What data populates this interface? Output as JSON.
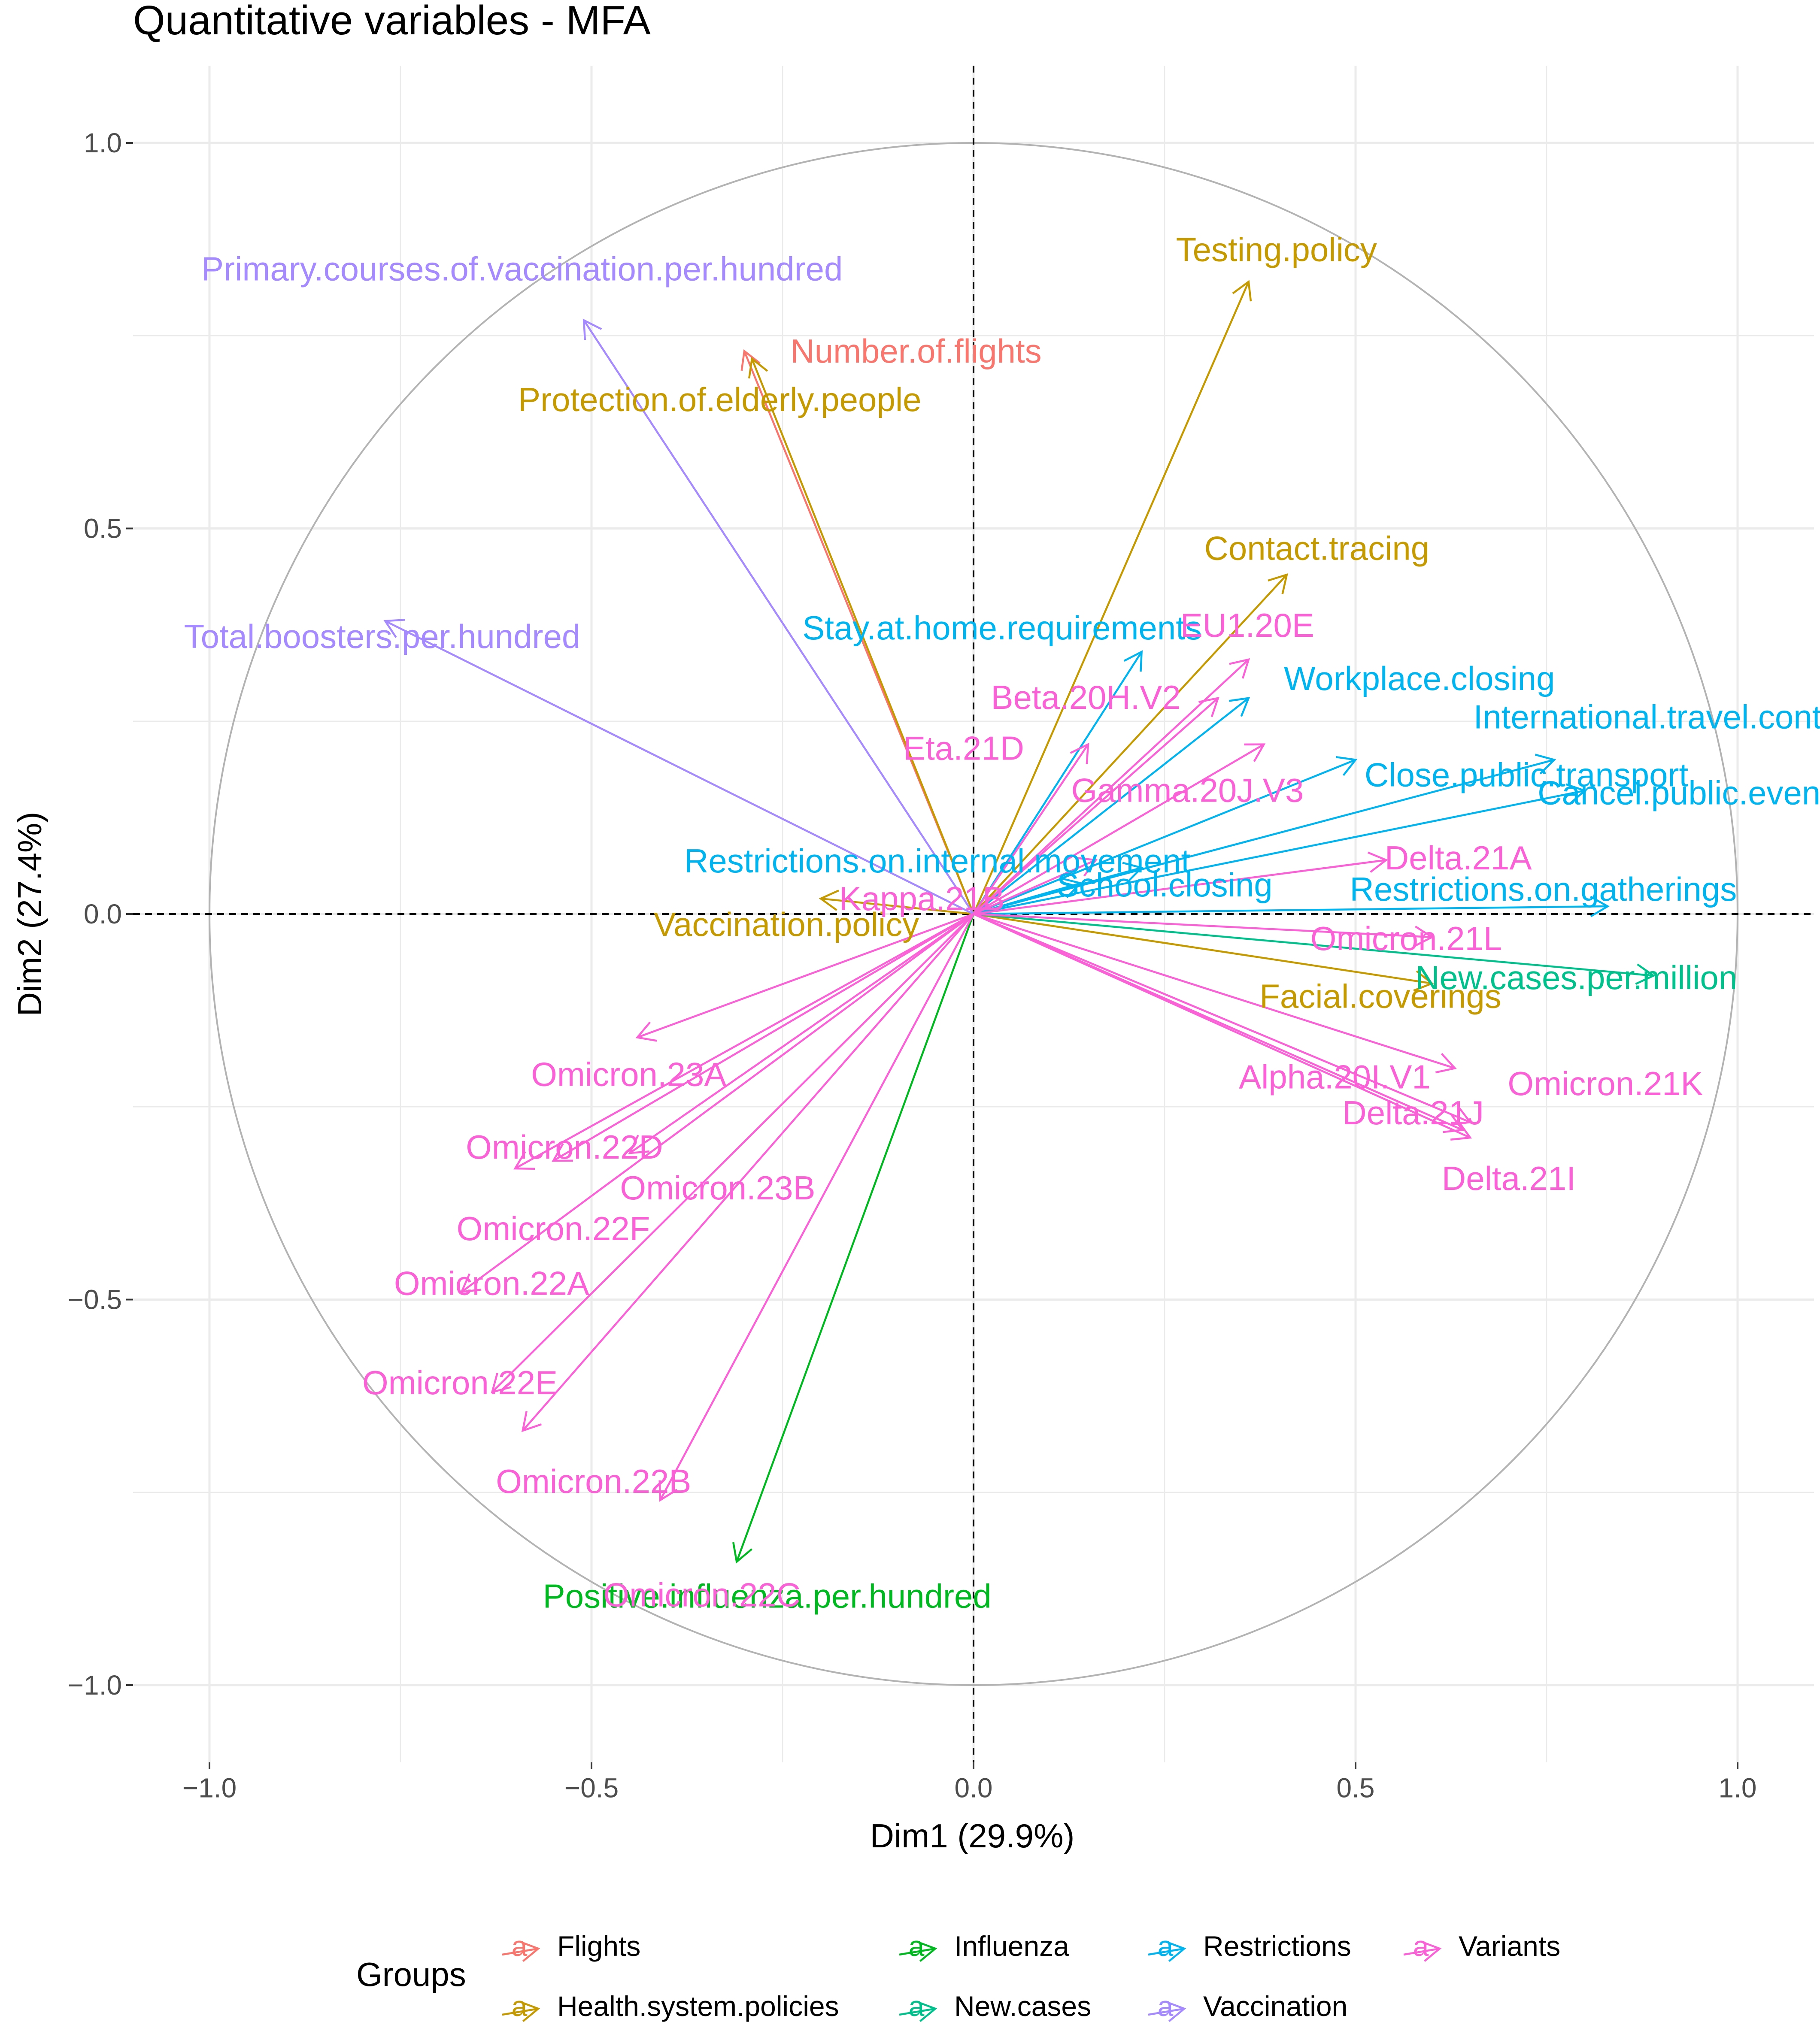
{
  "chart_data": {
    "type": "scatter",
    "subtype": "correlation-circle",
    "title": "Quantitative variables - MFA",
    "xlabel": "Dim1 (29.9%)",
    "ylabel": "Dim2 (27.4%)",
    "xlim": [
      -1.1,
      1.1
    ],
    "ylim": [
      -1.1,
      1.1
    ],
    "x_ticks": [
      -1.0,
      -0.5,
      0.0,
      0.5,
      1.0
    ],
    "y_ticks": [
      -1.0,
      -0.5,
      0.0,
      0.5,
      1.0
    ],
    "x_tick_labels": [
      "−1.0",
      "−0.5",
      "0.0",
      "0.5",
      "1.0"
    ],
    "y_tick_labels": [
      "−1.0",
      "−0.5",
      "0.0",
      "0.5",
      "1.0"
    ],
    "grid": true,
    "unit_circle": true,
    "legend": {
      "title": "Groups",
      "position": "bottom",
      "glyph": "a",
      "entries": [
        {
          "name": "Flights",
          "color": "#F8766D"
        },
        {
          "name": "Health.system.policies",
          "color": "#C49A00"
        },
        {
          "name": "Influenza",
          "color": "#00B81F"
        },
        {
          "name": "New.cases",
          "color": "#00C08B"
        },
        {
          "name": "Restrictions",
          "color": "#00B4F0"
        },
        {
          "name": "Vaccination",
          "color": "#A58AFF"
        },
        {
          "name": "Variants",
          "color": "#FB61D7"
        }
      ]
    },
    "series": [
      {
        "name": "Number.of.flights",
        "group": "Flights",
        "x": -0.3,
        "y": 0.73
      },
      {
        "name": "Testing.policy",
        "group": "Health.system.policies",
        "x": 0.36,
        "y": 0.82
      },
      {
        "name": "Protection.of.elderly.people",
        "group": "Health.system.policies",
        "x": -0.29,
        "y": 0.72
      },
      {
        "name": "Contact.tracing",
        "group": "Health.system.policies",
        "x": 0.41,
        "y": 0.44
      },
      {
        "name": "Vaccination.policy",
        "group": "Health.system.policies",
        "x": -0.2,
        "y": 0.02
      },
      {
        "name": "Facial.coverings",
        "group": "Health.system.policies",
        "x": 0.6,
        "y": -0.09
      },
      {
        "name": "Positive.influenza.per.hundred",
        "group": "Influenza",
        "x": -0.31,
        "y": -0.84
      },
      {
        "name": "New.cases.per.million",
        "group": "New.cases",
        "x": 0.89,
        "y": -0.08
      },
      {
        "name": "Stay.at.home.requirements",
        "group": "Restrictions",
        "x": 0.22,
        "y": 0.34
      },
      {
        "name": "Workplace.closing",
        "group": "Restrictions",
        "x": 0.36,
        "y": 0.28
      },
      {
        "name": "International.travel.controls",
        "group": "Restrictions",
        "x": 0.76,
        "y": 0.2
      },
      {
        "name": "Close.public.transport",
        "group": "Restrictions",
        "x": 0.5,
        "y": 0.2
      },
      {
        "name": "Cancel.public.events",
        "group": "Restrictions",
        "x": 0.8,
        "y": 0.16
      },
      {
        "name": "Restrictions.on.internal.movement",
        "group": "Restrictions",
        "x": 0.22,
        "y": 0.06
      },
      {
        "name": "Restrictions.on.gatherings",
        "group": "Restrictions",
        "x": 0.83,
        "y": 0.01
      },
      {
        "name": "School.closing",
        "group": "Restrictions",
        "x": 0.14,
        "y": 0.04
      },
      {
        "name": "Primary.courses.of.vaccination.per.hundred",
        "group": "Vaccination",
        "x": -0.51,
        "y": 0.77
      },
      {
        "name": "Total.boosters.per.hundred",
        "group": "Vaccination",
        "x": -0.77,
        "y": 0.38
      },
      {
        "name": "EU1.20E",
        "group": "Variants",
        "x": 0.36,
        "y": 0.33
      },
      {
        "name": "Beta.20H.V2",
        "group": "Variants",
        "x": 0.32,
        "y": 0.28
      },
      {
        "name": "Eta.21D",
        "group": "Variants",
        "x": 0.15,
        "y": 0.22
      },
      {
        "name": "Gamma.20J.V3",
        "group": "Variants",
        "x": 0.38,
        "y": 0.22
      },
      {
        "name": "Kappa.21B",
        "group": "Variants",
        "x": 0.16,
        "y": 0.07
      },
      {
        "name": "Delta.21A",
        "group": "Variants",
        "x": 0.54,
        "y": 0.07
      },
      {
        "name": "Omicron.21L",
        "group": "Variants",
        "x": 0.6,
        "y": -0.03
      },
      {
        "name": "Alpha.20I.V1",
        "group": "Variants",
        "x": 0.63,
        "y": -0.2
      },
      {
        "name": "Omicron.21K",
        "group": "Variants",
        "x": 0.65,
        "y": -0.27
      },
      {
        "name": "Delta.21J",
        "group": "Variants",
        "x": 0.64,
        "y": -0.28
      },
      {
        "name": "Delta.21I",
        "group": "Variants",
        "x": 0.65,
        "y": -0.29
      },
      {
        "name": "Omicron.23A",
        "group": "Variants",
        "x": -0.44,
        "y": -0.16
      },
      {
        "name": "Omicron.22D",
        "group": "Variants",
        "x": -0.6,
        "y": -0.33
      },
      {
        "name": "Omicron.22F",
        "group": "Variants",
        "x": -0.55,
        "y": -0.32
      },
      {
        "name": "Omicron.23B",
        "group": "Variants",
        "x": -0.45,
        "y": -0.31
      },
      {
        "name": "Omicron.22A",
        "group": "Variants",
        "x": -0.67,
        "y": -0.49
      },
      {
        "name": "Omicron.22E",
        "group": "Variants",
        "x": -0.63,
        "y": -0.62
      },
      {
        "name": "Omicron.22B",
        "group": "Variants",
        "x": -0.59,
        "y": -0.67
      },
      {
        "name": "Omicron.22C",
        "group": "Variants",
        "x": -0.41,
        "y": -0.76
      }
    ]
  }
}
